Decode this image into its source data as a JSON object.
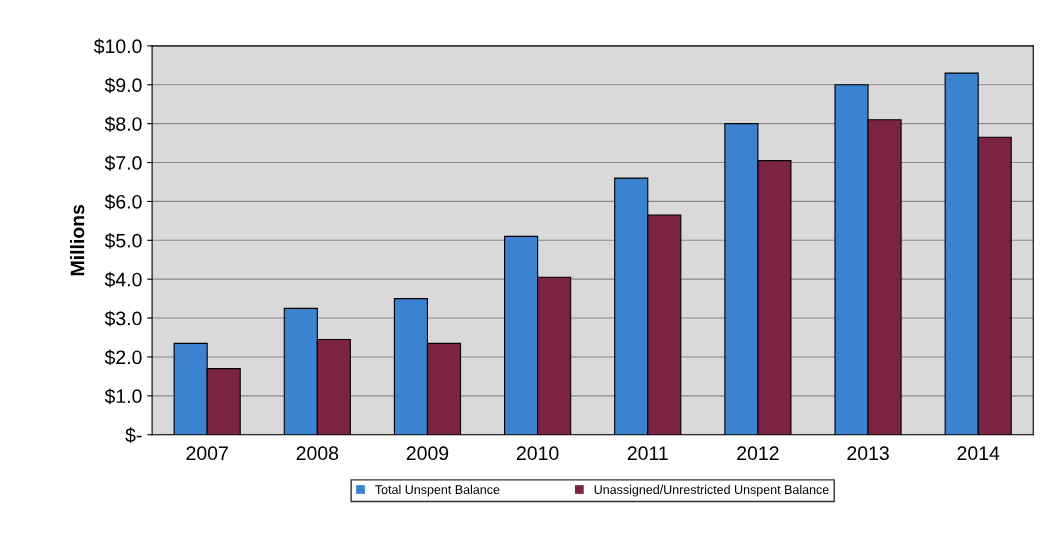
{
  "chart_data": {
    "type": "bar",
    "ylabel": "Millions",
    "categories": [
      "2007",
      "2008",
      "2009",
      "2010",
      "2011",
      "2012",
      "2013",
      "2014"
    ],
    "series": [
      {
        "name": "Total Unspent Balance",
        "color": "#3b82d0",
        "values": [
          2.35,
          3.25,
          3.5,
          5.1,
          6.6,
          8.0,
          9.0,
          9.3
        ]
      },
      {
        "name": "Unassigned/Unrestricted Unspent Balance",
        "color": "#7a2343",
        "values": [
          1.7,
          2.45,
          2.35,
          4.05,
          5.65,
          7.05,
          8.1,
          7.65
        ]
      }
    ],
    "ylim": [
      0,
      10
    ],
    "yticks": [
      {
        "value": 0,
        "label": "$-"
      },
      {
        "value": 1,
        "label": "$1.0"
      },
      {
        "value": 2,
        "label": "$2.0"
      },
      {
        "value": 3,
        "label": "$3.0"
      },
      {
        "value": 4,
        "label": "$4.0"
      },
      {
        "value": 5,
        "label": "$5.0"
      },
      {
        "value": 6,
        "label": "$6.0"
      },
      {
        "value": 7,
        "label": "$7.0"
      },
      {
        "value": 8,
        "label": "$8.0"
      },
      {
        "value": 9,
        "label": "$9.0"
      },
      {
        "value": 10,
        "label": "$10.0"
      }
    ],
    "grid": "y",
    "legend": "bottom"
  }
}
